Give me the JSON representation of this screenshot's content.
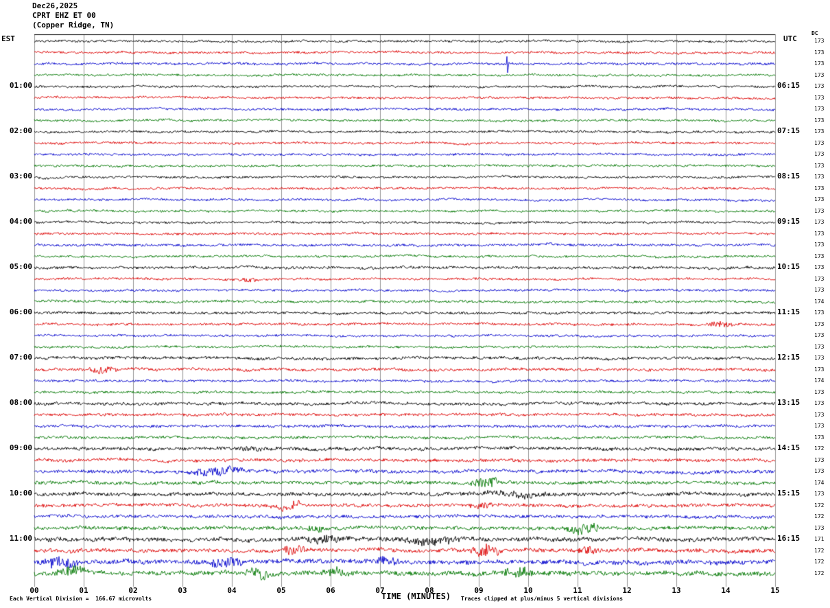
{
  "header": {
    "date": "Dec26,2025",
    "station": "CPRT EHZ ET 00",
    "location": "(Copper Ridge, TN)"
  },
  "axes": {
    "left_header": "EST",
    "right_header": "UTC",
    "dc_header": "DC",
    "x_label": "TIME (MINUTES)"
  },
  "footer": {
    "scale_note": "Each Vertical Division =  166.67 microvolts",
    "clip_note": "Traces clipped at plus/minus 5 vertical divisions"
  },
  "chart_data": {
    "type": "line",
    "subtype": "helicorder_seismogram",
    "title": "CPRT EHZ ET 00 (Copper Ridge, TN) Dec26,2025",
    "xlabel": "TIME (MINUTES)",
    "x_range_minutes": [
      0,
      15
    ],
    "x_ticks": [
      "00",
      "01",
      "02",
      "03",
      "04",
      "05",
      "06",
      "07",
      "08",
      "09",
      "10",
      "11",
      "12",
      "13",
      "14",
      "15"
    ],
    "grid_on": true,
    "grid_color": "#777777",
    "trace_color_cycle": [
      "#000000",
      "#dd0000",
      "#0000cc",
      "#007700"
    ],
    "rows_total": 48,
    "traces_per_hour": 4,
    "first_label_row": 4,
    "hour_labels": [
      {
        "est": "01:00",
        "utc": "06:15"
      },
      {
        "est": "02:00",
        "utc": "07:15"
      },
      {
        "est": "03:00",
        "utc": "08:15"
      },
      {
        "est": "04:00",
        "utc": "09:15"
      },
      {
        "est": "05:00",
        "utc": "10:15"
      },
      {
        "est": "06:00",
        "utc": "11:15"
      },
      {
        "est": "07:00",
        "utc": "12:15"
      },
      {
        "est": "08:00",
        "utc": "13:15"
      },
      {
        "est": "09:00",
        "utc": "14:15"
      },
      {
        "est": "10:00",
        "utc": "15:15"
      },
      {
        "est": "11:00",
        "utc": "16:15"
      }
    ],
    "dc_values": [
      173,
      173,
      173,
      173,
      173,
      173,
      173,
      173,
      173,
      173,
      173,
      173,
      173,
      173,
      173,
      173,
      173,
      173,
      173,
      173,
      173,
      173,
      173,
      174,
      173,
      173,
      173,
      173,
      173,
      173,
      174,
      173,
      173,
      173,
      173,
      173,
      172,
      173,
      173,
      174,
      173,
      172,
      172,
      173,
      171,
      172,
      172,
      172
    ],
    "row_amplitude": [
      1.0,
      1.0,
      1.1,
      1.0,
      1.0,
      1.0,
      1.0,
      1.0,
      1.0,
      1.0,
      1.0,
      1.0,
      1.0,
      1.0,
      1.0,
      1.0,
      1.0,
      1.0,
      1.1,
      1.0,
      1.2,
      1.0,
      1.0,
      1.1,
      1.1,
      1.1,
      1.0,
      1.0,
      1.3,
      1.3,
      1.1,
      1.1,
      1.3,
      1.2,
      1.2,
      1.2,
      1.5,
      1.4,
      1.5,
      1.5,
      1.6,
      1.5,
      1.4,
      1.6,
      1.9,
      1.7,
      2.0,
      2.0
    ],
    "bursts": [
      {
        "row": 21,
        "start": 4.0,
        "end": 4.6,
        "amp": 1.8
      },
      {
        "row": 25,
        "start": 13.6,
        "end": 14.2,
        "amp": 2.4
      },
      {
        "row": 29,
        "start": 1.0,
        "end": 1.7,
        "amp": 2.6
      },
      {
        "row": 36,
        "start": 4.1,
        "end": 4.6,
        "amp": 2.2
      },
      {
        "row": 38,
        "start": 3.1,
        "end": 4.3,
        "amp": 3.0
      },
      {
        "row": 39,
        "start": 8.8,
        "end": 9.5,
        "amp": 3.2
      },
      {
        "row": 40,
        "start": 9.0,
        "end": 10.6,
        "amp": 1.9
      },
      {
        "row": 41,
        "start": 4.9,
        "end": 5.4,
        "amp": 3.4
      },
      {
        "row": 41,
        "start": 8.8,
        "end": 9.3,
        "amp": 2.2
      },
      {
        "row": 43,
        "start": 5.5,
        "end": 5.9,
        "amp": 2.0
      },
      {
        "row": 43,
        "start": 10.7,
        "end": 11.5,
        "amp": 3.2
      },
      {
        "row": 44,
        "start": 5.4,
        "end": 6.4,
        "amp": 2.2
      },
      {
        "row": 44,
        "start": 7.4,
        "end": 8.7,
        "amp": 2.0
      },
      {
        "row": 45,
        "start": 5.0,
        "end": 5.5,
        "amp": 2.8
      },
      {
        "row": 45,
        "start": 8.8,
        "end": 9.5,
        "amp": 3.4
      },
      {
        "row": 45,
        "start": 11.0,
        "end": 11.5,
        "amp": 2.2
      },
      {
        "row": 46,
        "start": 0.1,
        "end": 1.0,
        "amp": 2.8
      },
      {
        "row": 46,
        "start": 3.5,
        "end": 4.2,
        "amp": 2.6
      },
      {
        "row": 46,
        "start": 6.9,
        "end": 7.4,
        "amp": 2.0
      },
      {
        "row": 47,
        "start": 0.4,
        "end": 1.1,
        "amp": 2.4
      },
      {
        "row": 47,
        "start": 4.2,
        "end": 4.8,
        "amp": 2.6
      },
      {
        "row": 47,
        "start": 5.8,
        "end": 6.4,
        "amp": 2.2
      },
      {
        "row": 47,
        "start": 9.5,
        "end": 10.1,
        "amp": 2.8
      }
    ],
    "spikes": [
      {
        "row": 2,
        "minute": 9.58,
        "amp": 13
      }
    ]
  }
}
